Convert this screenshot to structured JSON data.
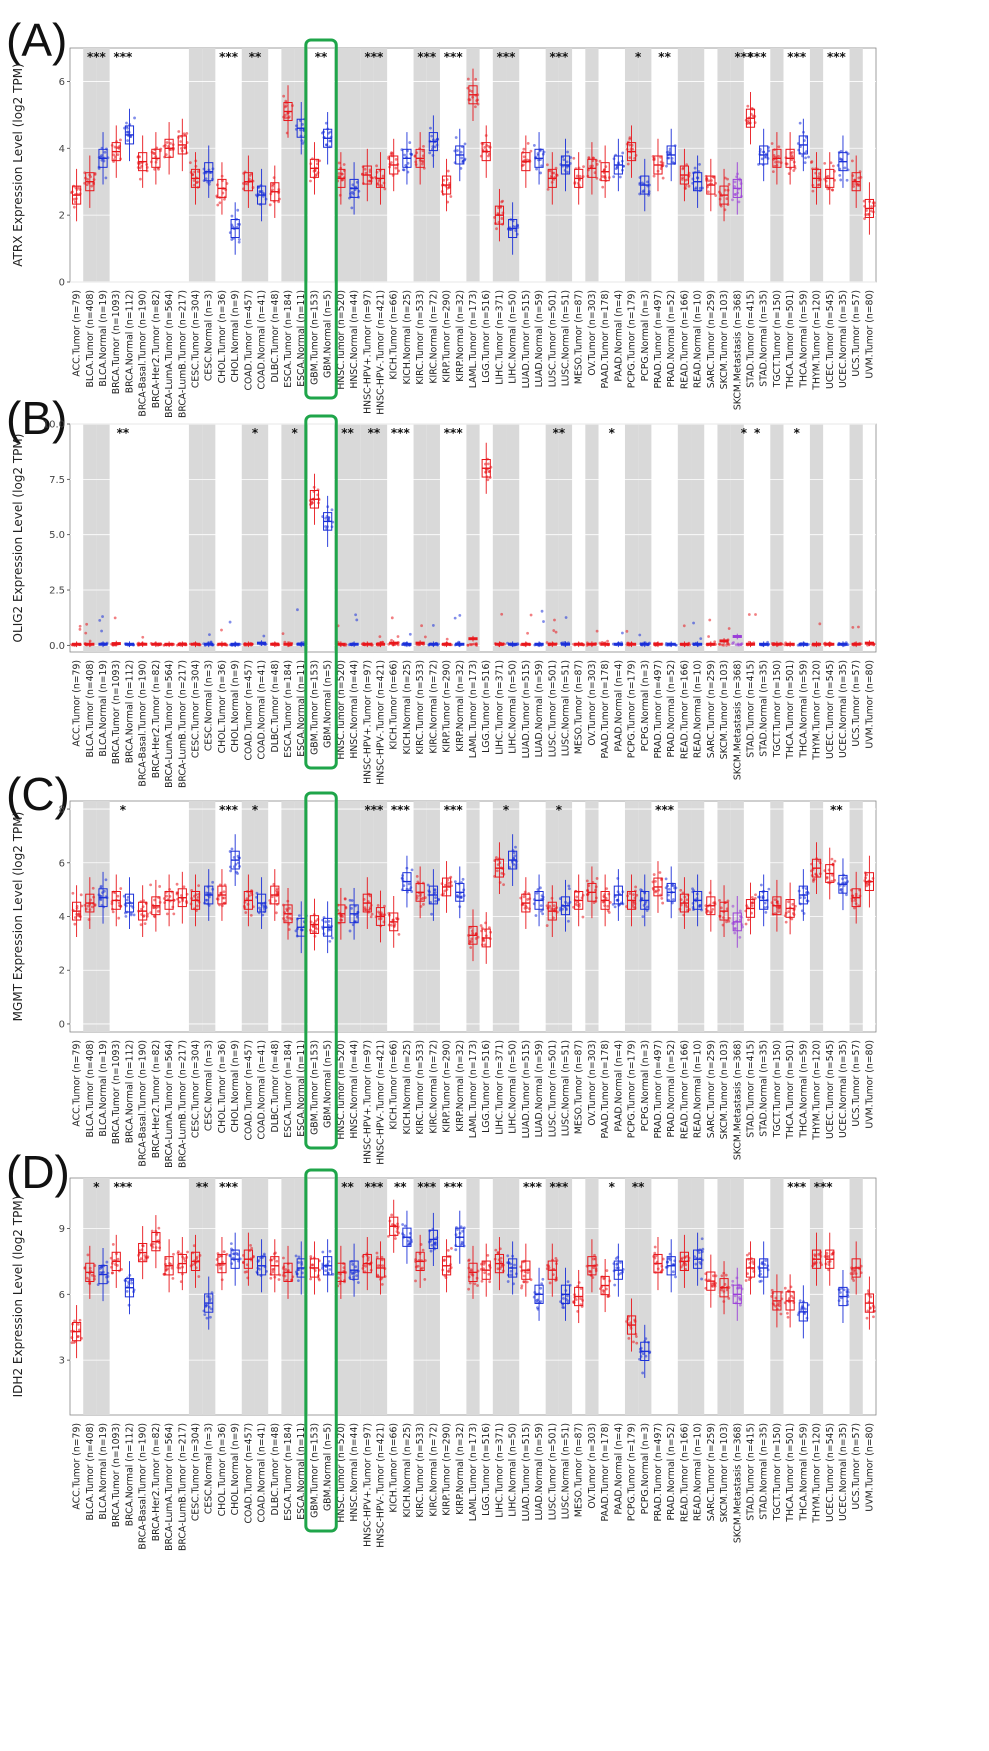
{
  "colors": {
    "tumor": "#e8161b",
    "normal": "#1a2fd8",
    "metastasis": "#9b3fd9",
    "shade": "#d9d9d9",
    "highlight": "#1fa54a"
  },
  "categories": [
    "ACC.Tumor (n=79)",
    "BLCA.Tumor (n=408)",
    "BLCA.Normal (n=19)",
    "BRCA.Tumor (n=1093)",
    "BRCA.Normal (n=112)",
    "BRCA-Basal.Tumor (n=190)",
    "BRCA-Her2.Tumor (n=82)",
    "BRCA-LumA.Tumor (n=564)",
    "BRCA-LumB.Tumor (n=217)",
    "CESC.Tumor (n=304)",
    "CESC.Normal (n=3)",
    "CHOL.Tumor (n=36)",
    "CHOL.Normal (n=9)",
    "COAD.Tumor (n=457)",
    "COAD.Normal (n=41)",
    "DLBC.Tumor (n=48)",
    "ESCA.Tumor (n=184)",
    "ESCA.Normal (n=11)",
    "GBM.Tumor (n=153)",
    "GBM.Normal (n=5)",
    "HNSC.Tumor (n=520)",
    "HNSC.Normal (n=44)",
    "HNSC-HPV+.Tumor (n=97)",
    "HNSC-HPV-.Tumor (n=421)",
    "KICH.Tumor (n=66)",
    "KICH.Normal (n=25)",
    "KIRC.Tumor (n=533)",
    "KIRC.Normal (n=72)",
    "KIRP.Tumor (n=290)",
    "KIRP.Normal (n=32)",
    "LAML.Tumor (n=173)",
    "LGG.Tumor (n=516)",
    "LIHC.Tumor (n=371)",
    "LIHC.Normal (n=50)",
    "LUAD.Tumor (n=515)",
    "LUAD.Normal (n=59)",
    "LUSC.Tumor (n=501)",
    "LUSC.Normal (n=51)",
    "MESO.Tumor (n=87)",
    "OV.Tumor (n=303)",
    "PAAD.Tumor (n=178)",
    "PAAD.Normal (n=4)",
    "PCPG.Tumor (n=179)",
    "PCPG.Normal (n=3)",
    "PRAD.Tumor (n=497)",
    "PRAD.Normal (n=52)",
    "READ.Tumor (n=166)",
    "READ.Normal (n=10)",
    "SARC.Tumor (n=259)",
    "SKCM.Tumor (n=103)",
    "SKCM.Metastasis (n=368)",
    "STAD.Tumor (n=415)",
    "STAD.Normal (n=35)",
    "TGCT.Tumor (n=150)",
    "THCA.Tumor (n=501)",
    "THCA.Normal (n=59)",
    "THYM.Tumor (n=120)",
    "UCEC.Tumor (n=545)",
    "UCEC.Normal (n=35)",
    "UCS.Tumor (n=57)",
    "UVM.Tumor (n=80)"
  ],
  "chart_data": [
    {
      "type": "box",
      "panel": "(A)",
      "ylabel": "ATRX Expression Level (log2 TPM)",
      "ylim": [
        0,
        7
      ],
      "yticks": [
        0,
        2,
        4,
        6
      ],
      "medians": [
        2.6,
        3.0,
        3.7,
        3.9,
        4.4,
        3.6,
        3.7,
        4.0,
        4.1,
        3.1,
        3.3,
        2.8,
        1.6,
        3.0,
        2.6,
        2.7,
        5.1,
        4.6,
        3.4,
        4.3,
        3.1,
        2.8,
        3.2,
        3.1,
        3.5,
        3.7,
        3.7,
        4.2,
        2.9,
        3.8,
        5.6,
        3.9,
        2.0,
        1.6,
        3.6,
        3.7,
        3.1,
        3.5,
        3.1,
        3.4,
        3.3,
        3.5,
        3.9,
        2.9,
        3.5,
        3.8,
        3.2,
        3.0,
        2.9,
        2.6,
        2.8,
        4.9,
        3.8,
        3.7,
        3.7,
        4.1,
        3.1,
        3.1,
        3.6,
        3.0,
        2.2
      ],
      "significance": [
        "",
        "***",
        "",
        "***",
        "",
        "",
        "",
        "",
        "",
        "",
        "",
        "***",
        "",
        "**",
        "",
        "",
        "",
        "",
        "**",
        "",
        "",
        "",
        "***",
        "",
        "",
        "",
        "***",
        "",
        "***",
        "",
        "",
        "",
        "***",
        "",
        "",
        "",
        "***",
        "",
        "",
        "",
        "",
        "",
        "*",
        "",
        "**",
        "",
        "",
        "",
        "",
        "",
        "***",
        "***",
        "",
        "",
        "***",
        "",
        "",
        "***",
        "",
        "",
        ""
      ]
    },
    {
      "type": "box",
      "panel": "(B)",
      "ylabel": "OLIG2 Expression Level (log2 TPM)",
      "ylim": [
        -0.3,
        10
      ],
      "yticks": [
        0.0,
        2.5,
        5.0,
        7.5,
        10.0
      ],
      "medians": [
        0.05,
        0.05,
        0.05,
        0.08,
        0.05,
        0.05,
        0.05,
        0.05,
        0.05,
        0.05,
        0.05,
        0.05,
        0.05,
        0.05,
        0.1,
        0.05,
        0.05,
        0.05,
        6.6,
        5.6,
        0.05,
        0.05,
        0.05,
        0.05,
        0.1,
        0.05,
        0.1,
        0.05,
        0.05,
        0.05,
        0.3,
        8.0,
        0.05,
        0.05,
        0.05,
        0.05,
        0.05,
        0.05,
        0.05,
        0.05,
        0.05,
        0.05,
        0.05,
        0.05,
        0.05,
        0.05,
        0.05,
        0.05,
        0.05,
        0.2,
        0.4,
        0.05,
        0.05,
        0.05,
        0.05,
        0.05,
        0.05,
        0.05,
        0.05,
        0.05,
        0.1
      ],
      "significance": [
        "",
        "",
        "",
        "**",
        "",
        "",
        "",
        "",
        "",
        "",
        "",
        "",
        "",
        "*",
        "",
        "",
        "*",
        "",
        "",
        "",
        "**",
        "",
        "**",
        "",
        "***",
        "",
        "",
        "",
        "***",
        "",
        "",
        "",
        "",
        "",
        "",
        "",
        "**",
        "",
        "",
        "",
        "*",
        "",
        "",
        "",
        "",
        "",
        "",
        "",
        "",
        "",
        "*",
        "*",
        "",
        "",
        "*",
        "",
        "",
        "",
        "",
        "",
        ""
      ]
    },
    {
      "type": "box",
      "panel": "(C)",
      "ylabel": "MGMT Expression Level (log2 TPM)",
      "ylim": [
        -0.3,
        8.3
      ],
      "yticks": [
        0,
        2,
        4,
        6,
        8
      ],
      "medians": [
        4.2,
        4.5,
        4.7,
        4.6,
        4.5,
        4.2,
        4.4,
        4.6,
        4.7,
        4.6,
        4.8,
        4.8,
        6.1,
        4.6,
        4.5,
        4.8,
        4.1,
        3.6,
        3.7,
        3.6,
        4.1,
        4.1,
        4.5,
        4.0,
        3.8,
        5.3,
        4.9,
        4.8,
        5.1,
        4.9,
        3.3,
        3.2,
        5.8,
        6.1,
        4.5,
        4.6,
        4.2,
        4.4,
        4.6,
        4.9,
        4.6,
        4.8,
        4.6,
        4.6,
        5.1,
        4.9,
        4.5,
        4.6,
        4.4,
        4.2,
        3.8,
        4.3,
        4.6,
        4.4,
        4.3,
        4.8,
        5.8,
        5.6,
        5.2,
        4.7,
        5.3
      ],
      "significance": [
        "",
        "",
        "",
        "*",
        "",
        "",
        "",
        "",
        "",
        "",
        "",
        "***",
        "",
        "*",
        "",
        "",
        "",
        "",
        "",
        "",
        "",
        "",
        "***",
        "",
        "***",
        "",
        "",
        "",
        "***",
        "",
        "",
        "",
        "*",
        "",
        "",
        "",
        "*",
        "",
        "",
        "",
        "",
        "",
        "",
        "",
        "***",
        "",
        "",
        "",
        "",
        "",
        "",
        "",
        "",
        "",
        "",
        "",
        "",
        "**",
        "",
        "",
        ""
      ]
    },
    {
      "type": "box",
      "panel": "(D)",
      "ylabel": "IDH2 Expression Level (log2 TPM)",
      "ylim": [
        0.5,
        11.3
      ],
      "yticks": [
        3,
        6,
        9
      ],
      "medians": [
        4.3,
        7.0,
        6.9,
        7.5,
        6.3,
        7.9,
        8.4,
        7.3,
        7.4,
        7.5,
        5.6,
        7.4,
        7.6,
        7.6,
        7.3,
        7.3,
        7.0,
        7.2,
        7.2,
        7.3,
        7.0,
        7.1,
        7.4,
        7.2,
        9.1,
        8.6,
        7.5,
        8.5,
        7.3,
        8.6,
        7.0,
        7.1,
        7.4,
        7.2,
        7.1,
        6.0,
        7.1,
        6.0,
        5.9,
        7.3,
        6.4,
        7.1,
        4.6,
        3.4,
        7.4,
        7.3,
        7.5,
        7.6,
        6.6,
        6.3,
        6.0,
        7.2,
        7.2,
        5.7,
        5.7,
        5.2,
        7.6,
        7.6,
        5.9,
        7.2,
        5.6
      ],
      "significance": [
        "",
        "*",
        "",
        "***",
        "",
        "",
        "",
        "",
        "",
        "**",
        "",
        "***",
        "",
        "",
        "",
        "",
        "",
        "",
        "",
        "",
        "**",
        "",
        "***",
        "",
        "**",
        "",
        "***",
        "",
        "***",
        "",
        "",
        "",
        "",
        "",
        "***",
        "",
        "***",
        "",
        "",
        "",
        "*",
        "",
        "**",
        "",
        "",
        "",
        "",
        "",
        "",
        "",
        "",
        "",
        "",
        "",
        "***",
        "",
        "***",
        "",
        "",
        "",
        ""
      ]
    }
  ]
}
